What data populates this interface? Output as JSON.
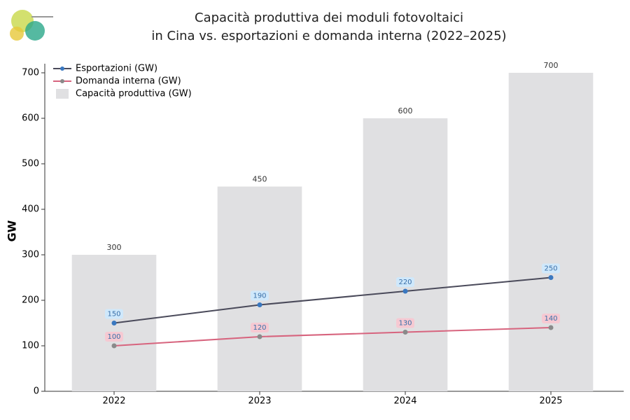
{
  "chart_data": {
    "type": "combo",
    "title": [
      "Capacità produttiva dei moduli fotovoltaici",
      "in Cina vs. esportazioni e domanda interna (2022–2025)"
    ],
    "ylabel": "GW",
    "categories": [
      "2022",
      "2023",
      "2024",
      "2025"
    ],
    "bars": {
      "name": "Capacità produttiva (GW)",
      "color": "#e0e0e2",
      "values": [
        300,
        450,
        600,
        700
      ]
    },
    "series": [
      {
        "name": "Esportazioni (GW)",
        "color": "#4a4a5a",
        "marker_color": "#3a78c0",
        "label_color": "#cfe8fb",
        "values": [
          150,
          190,
          220,
          250
        ]
      },
      {
        "name": "Domanda interna (GW)",
        "color": "#d7647e",
        "marker_color": "#8a8a8a",
        "label_color": "#f6c9d2",
        "values": [
          100,
          120,
          130,
          140
        ]
      }
    ],
    "ylim": [
      0,
      720
    ],
    "yticks": [
      0,
      100,
      200,
      300,
      400,
      500,
      600,
      700
    ],
    "legend": "upper-left"
  }
}
